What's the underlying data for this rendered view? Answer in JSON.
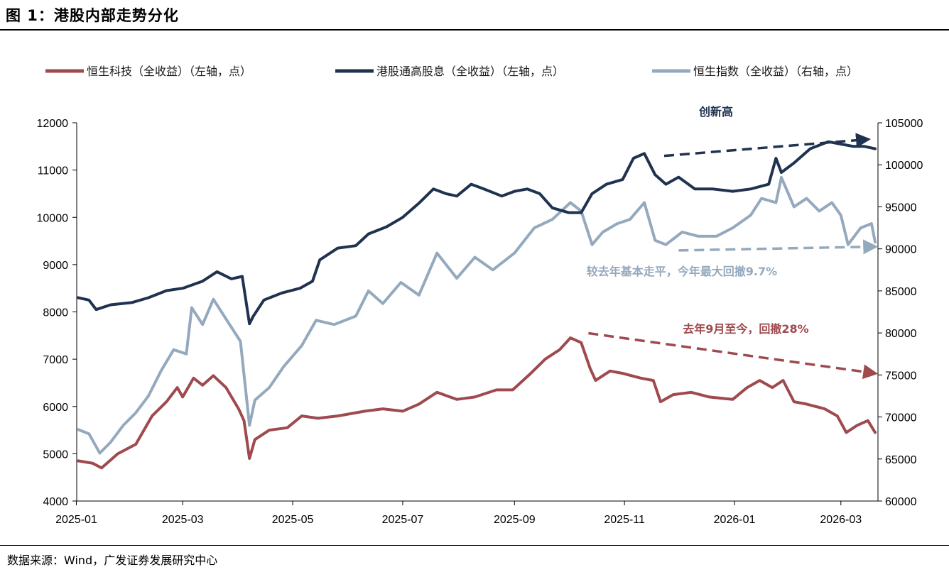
{
  "figure_title": "图  1：港股内部走势分化",
  "source": "数据来源：Wind，广发证券发展研究中心",
  "colors": {
    "hstech": "#9e4a4e",
    "dividend": "#1f3350",
    "hsi": "#94a9bd"
  },
  "chart_data": {
    "type": "line",
    "title": "港股内部走势分化",
    "x_range": [
      "2025-01-02",
      "2026-03-20"
    ],
    "x_ticks": [
      "2025-01",
      "2025-03",
      "2025-05",
      "2025-07",
      "2025-09",
      "2025-11",
      "2026-01",
      "2026-03"
    ],
    "y_left": {
      "min": 4000,
      "max": 12000,
      "ticks": [
        "4000",
        "5000",
        "6000",
        "7000",
        "8000",
        "9000",
        "10000",
        "11000",
        "12000"
      ]
    },
    "y_right": {
      "min": 60000,
      "max": 105000,
      "ticks": [
        "60000",
        "65000",
        "70000",
        "75000",
        "80000",
        "85000",
        "90000",
        "95000",
        "100000",
        "105000"
      ]
    },
    "grid": false,
    "legend_position": "top",
    "series": [
      {
        "name": "恒生科技（全收益）（左轴，点）",
        "axis": "left",
        "color": "#9e4a4e",
        "points": [
          [
            "2025-01-02",
            4850
          ],
          [
            "2025-01-10",
            4800
          ],
          [
            "2025-01-15",
            4700
          ],
          [
            "2025-01-24",
            5000
          ],
          [
            "2025-02-03",
            5200
          ],
          [
            "2025-02-12",
            5800
          ],
          [
            "2025-02-20",
            6100
          ],
          [
            "2025-02-26",
            6400
          ],
          [
            "2025-03-01",
            6200
          ],
          [
            "2025-03-07",
            6600
          ],
          [
            "2025-03-12",
            6450
          ],
          [
            "2025-03-18",
            6650
          ],
          [
            "2025-03-25",
            6400
          ],
          [
            "2025-04-01",
            5950
          ],
          [
            "2025-04-04",
            5700
          ],
          [
            "2025-04-07",
            4900
          ],
          [
            "2025-04-10",
            5300
          ],
          [
            "2025-04-18",
            5500
          ],
          [
            "2025-04-28",
            5550
          ],
          [
            "2025-05-06",
            5800
          ],
          [
            "2025-05-15",
            5750
          ],
          [
            "2025-05-26",
            5800
          ],
          [
            "2025-06-10",
            5900
          ],
          [
            "2025-06-20",
            5950
          ],
          [
            "2025-07-01",
            5900
          ],
          [
            "2025-07-10",
            6050
          ],
          [
            "2025-07-20",
            6300
          ],
          [
            "2025-07-31",
            6150
          ],
          [
            "2025-08-10",
            6200
          ],
          [
            "2025-08-22",
            6350
          ],
          [
            "2025-08-31",
            6350
          ],
          [
            "2025-09-10",
            6700
          ],
          [
            "2025-09-18",
            7000
          ],
          [
            "2025-09-26",
            7200
          ],
          [
            "2025-10-02",
            7450
          ],
          [
            "2025-10-08",
            7350
          ],
          [
            "2025-10-13",
            6800
          ],
          [
            "2025-10-16",
            6550
          ],
          [
            "2025-10-24",
            6750
          ],
          [
            "2025-10-31",
            6700
          ],
          [
            "2025-11-10",
            6600
          ],
          [
            "2025-11-17",
            6550
          ],
          [
            "2025-11-21",
            6100
          ],
          [
            "2025-11-28",
            6250
          ],
          [
            "2025-12-08",
            6300
          ],
          [
            "2025-12-18",
            6200
          ],
          [
            "2025-12-31",
            6150
          ],
          [
            "2026-01-08",
            6400
          ],
          [
            "2026-01-15",
            6550
          ],
          [
            "2026-01-22",
            6400
          ],
          [
            "2026-01-28",
            6550
          ],
          [
            "2026-02-03",
            6100
          ],
          [
            "2026-02-10",
            6050
          ],
          [
            "2026-02-20",
            5950
          ],
          [
            "2026-02-27",
            5800
          ],
          [
            "2026-03-04",
            5450
          ],
          [
            "2026-03-10",
            5600
          ],
          [
            "2026-03-16",
            5700
          ],
          [
            "2026-03-20",
            5450
          ]
        ]
      },
      {
        "name": "港股通高股息（全收益）（左轴，点）",
        "axis": "left",
        "color": "#1f3350",
        "points": [
          [
            "2025-01-02",
            8300
          ],
          [
            "2025-01-08",
            8250
          ],
          [
            "2025-01-12",
            8050
          ],
          [
            "2025-01-20",
            8150
          ],
          [
            "2025-02-01",
            8200
          ],
          [
            "2025-02-10",
            8300
          ],
          [
            "2025-02-20",
            8450
          ],
          [
            "2025-03-01",
            8500
          ],
          [
            "2025-03-12",
            8650
          ],
          [
            "2025-03-20",
            8850
          ],
          [
            "2025-03-28",
            8700
          ],
          [
            "2025-04-03",
            8750
          ],
          [
            "2025-04-07",
            7750
          ],
          [
            "2025-04-09",
            7900
          ],
          [
            "2025-04-15",
            8250
          ],
          [
            "2025-04-25",
            8400
          ],
          [
            "2025-05-05",
            8500
          ],
          [
            "2025-05-12",
            8650
          ],
          [
            "2025-05-16",
            9100
          ],
          [
            "2025-05-26",
            9350
          ],
          [
            "2025-06-05",
            9400
          ],
          [
            "2025-06-12",
            9650
          ],
          [
            "2025-06-22",
            9800
          ],
          [
            "2025-07-01",
            10000
          ],
          [
            "2025-07-10",
            10300
          ],
          [
            "2025-07-18",
            10600
          ],
          [
            "2025-07-25",
            10500
          ],
          [
            "2025-07-31",
            10450
          ],
          [
            "2025-08-08",
            10700
          ],
          [
            "2025-08-15",
            10600
          ],
          [
            "2025-08-25",
            10450
          ],
          [
            "2025-09-01",
            10550
          ],
          [
            "2025-09-08",
            10600
          ],
          [
            "2025-09-15",
            10500
          ],
          [
            "2025-09-22",
            10200
          ],
          [
            "2025-10-01",
            10100
          ],
          [
            "2025-10-08",
            10100
          ],
          [
            "2025-10-14",
            10500
          ],
          [
            "2025-10-22",
            10700
          ],
          [
            "2025-10-31",
            10800
          ],
          [
            "2025-11-06",
            11250
          ],
          [
            "2025-11-12",
            11350
          ],
          [
            "2025-11-18",
            10900
          ],
          [
            "2025-11-24",
            10700
          ],
          [
            "2025-12-01",
            10850
          ],
          [
            "2025-12-10",
            10600
          ],
          [
            "2025-12-20",
            10600
          ],
          [
            "2025-12-31",
            10550
          ],
          [
            "2026-01-10",
            10600
          ],
          [
            "2026-01-20",
            10700
          ],
          [
            "2026-01-24",
            11250
          ],
          [
            "2026-01-27",
            10950
          ],
          [
            "2026-02-03",
            11150
          ],
          [
            "2026-02-12",
            11450
          ],
          [
            "2026-02-22",
            11600
          ],
          [
            "2026-03-01",
            11550
          ],
          [
            "2026-03-08",
            11500
          ],
          [
            "2026-03-14",
            11500
          ],
          [
            "2026-03-20",
            11450
          ]
        ]
      },
      {
        "name": "恒生指数（全收益）（右轴，点）",
        "axis": "right",
        "color": "#94a9bd",
        "points": [
          [
            "2025-01-02",
            68500
          ],
          [
            "2025-01-08",
            68000
          ],
          [
            "2025-01-14",
            65700
          ],
          [
            "2025-01-20",
            67000
          ],
          [
            "2025-01-27",
            69000
          ],
          [
            "2025-02-03",
            70500
          ],
          [
            "2025-02-10",
            72500
          ],
          [
            "2025-02-17",
            75500
          ],
          [
            "2025-02-24",
            78000
          ],
          [
            "2025-03-03",
            77500
          ],
          [
            "2025-03-06",
            83000
          ],
          [
            "2025-03-12",
            81000
          ],
          [
            "2025-03-18",
            84000
          ],
          [
            "2025-03-24",
            82000
          ],
          [
            "2025-04-02",
            79000
          ],
          [
            "2025-04-07",
            69000
          ],
          [
            "2025-04-10",
            72000
          ],
          [
            "2025-04-18",
            73500
          ],
          [
            "2025-04-26",
            76000
          ],
          [
            "2025-05-06",
            78500
          ],
          [
            "2025-05-14",
            81500
          ],
          [
            "2025-05-24",
            81000
          ],
          [
            "2025-06-05",
            82000
          ],
          [
            "2025-06-12",
            85000
          ],
          [
            "2025-06-20",
            83500
          ],
          [
            "2025-06-30",
            86000
          ],
          [
            "2025-07-10",
            84500
          ],
          [
            "2025-07-20",
            89500
          ],
          [
            "2025-07-31",
            86500
          ],
          [
            "2025-08-10",
            89000
          ],
          [
            "2025-08-20",
            87500
          ],
          [
            "2025-09-01",
            89500
          ],
          [
            "2025-09-12",
            92500
          ],
          [
            "2025-09-22",
            93500
          ],
          [
            "2025-10-02",
            95500
          ],
          [
            "2025-10-08",
            94500
          ],
          [
            "2025-10-14",
            90500
          ],
          [
            "2025-10-20",
            92000
          ],
          [
            "2025-10-28",
            93000
          ],
          [
            "2025-11-04",
            93500
          ],
          [
            "2025-11-12",
            95500
          ],
          [
            "2025-11-18",
            91000
          ],
          [
            "2025-11-24",
            90500
          ],
          [
            "2025-12-03",
            92000
          ],
          [
            "2025-12-12",
            91500
          ],
          [
            "2025-12-22",
            91500
          ],
          [
            "2025-12-31",
            92500
          ],
          [
            "2026-01-10",
            94000
          ],
          [
            "2026-01-16",
            96000
          ],
          [
            "2026-01-24",
            95500
          ],
          [
            "2026-01-27",
            98500
          ],
          [
            "2026-02-03",
            95000
          ],
          [
            "2026-02-10",
            96000
          ],
          [
            "2026-02-17",
            94500
          ],
          [
            "2026-02-24",
            95500
          ],
          [
            "2026-03-01",
            94000
          ],
          [
            "2026-03-05",
            90500
          ],
          [
            "2026-03-12",
            92500
          ],
          [
            "2026-03-18",
            93000
          ],
          [
            "2026-03-20",
            90800
          ]
        ]
      }
    ],
    "annotations": [
      {
        "text": "创新高",
        "color": "#1f3350",
        "arrow_from": [
          "2025-11-23",
          11300
        ],
        "arrow_to": [
          "2026-03-16",
          11650
        ]
      },
      {
        "text": "较去年基本走平，今年最大回撤9.7%",
        "color": "#94a9bd",
        "arrow_from": [
          "2025-12-01",
          9300
        ],
        "arrow_to": [
          "2026-03-20",
          9380
        ]
      },
      {
        "text": "去年9月至今，回撤28%",
        "color": "#9e4a4e",
        "arrow_from": [
          "2025-10-12",
          7550
        ],
        "arrow_to": [
          "2026-03-20",
          6700
        ]
      }
    ]
  }
}
